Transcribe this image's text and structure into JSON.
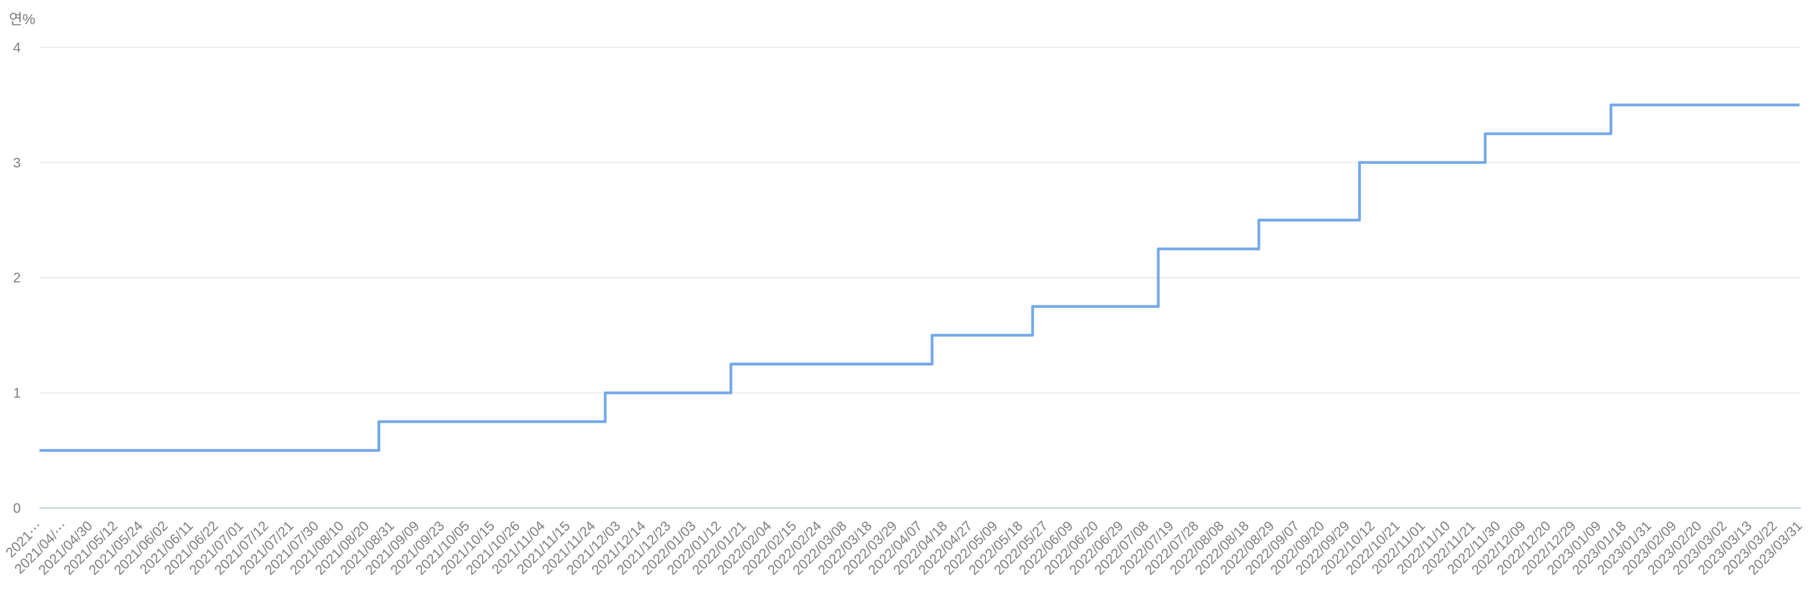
{
  "chart": {
    "unit_label": "연%"
  },
  "chart_data": {
    "type": "line",
    "line_style": "step-middle",
    "title": "",
    "xlabel": "",
    "ylabel": "연%",
    "ylim": [
      0,
      4
    ],
    "y_ticks": [
      0,
      1,
      2,
      3,
      4
    ],
    "grid": true,
    "legend": false,
    "x_label_rotation": -45,
    "line_color": "#74a9e8",
    "grid_color": "#ececec",
    "axis_line_color": "#ccd6e8",
    "label_color": "#7f7f7f",
    "x_labels": [
      "2021⋯",
      "2021/04/⋯",
      "2021/04/30",
      "2021/05/12",
      "2021/05/24",
      "2021/06/02",
      "2021/06/11",
      "2021/06/22",
      "2021/07/01",
      "2021/07/12",
      "2021/07/21",
      "2021/07/30",
      "2021/08/10",
      "2021/08/20",
      "2021/08/31",
      "2021/09/09",
      "2021/09/23",
      "2021/10/05",
      "2021/10/15",
      "2021/10/26",
      "2021/11/04",
      "2021/11/15",
      "2021/11/24",
      "2021/12/03",
      "2021/12/14",
      "2021/12/23",
      "2022/01/03",
      "2022/01/12",
      "2022/01/21",
      "2022/02/04",
      "2022/02/15",
      "2022/02/24",
      "2022/03/08",
      "2022/03/18",
      "2022/03/29",
      "2022/04/07",
      "2022/04/18",
      "2022/04/27",
      "2022/05/09",
      "2022/05/18",
      "2022/05/27",
      "2022/06/09",
      "2022/06/20",
      "2022/06/29",
      "2022/07/08",
      "2022/07/19",
      "2022/07/28",
      "2022/08/08",
      "2022/08/18",
      "2022/08/29",
      "2022/09/07",
      "2022/09/20",
      "2022/09/29",
      "2022/10/12",
      "2022/10/21",
      "2022/11/01",
      "2022/11/10",
      "2022/11/21",
      "2022/11/30",
      "2022/12/09",
      "2022/12/20",
      "2022/12/29",
      "2023/01/09",
      "2023/01/18",
      "2023/01/31",
      "2023/02/09",
      "2023/02/20",
      "2023/03/02",
      "2023/03/13",
      "2023/03/22",
      "2023/03/31"
    ],
    "values": [
      0.5,
      0.5,
      0.5,
      0.5,
      0.5,
      0.5,
      0.5,
      0.5,
      0.5,
      0.5,
      0.5,
      0.5,
      0.5,
      0.5,
      0.75,
      0.75,
      0.75,
      0.75,
      0.75,
      0.75,
      0.75,
      0.75,
      0.75,
      1,
      1,
      1,
      1,
      1,
      1.25,
      1.25,
      1.25,
      1.25,
      1.25,
      1.25,
      1.25,
      1.25,
      1.5,
      1.5,
      1.5,
      1.5,
      1.75,
      1.75,
      1.75,
      1.75,
      1.75,
      2.25,
      2.25,
      2.25,
      2.25,
      2.5,
      2.5,
      2.5,
      2.5,
      3,
      3,
      3,
      3,
      3,
      3.25,
      3.25,
      3.25,
      3.25,
      3.25,
      3.5,
      3.5,
      3.5,
      3.5,
      3.5,
      3.5,
      3.5,
      3.5
    ]
  }
}
